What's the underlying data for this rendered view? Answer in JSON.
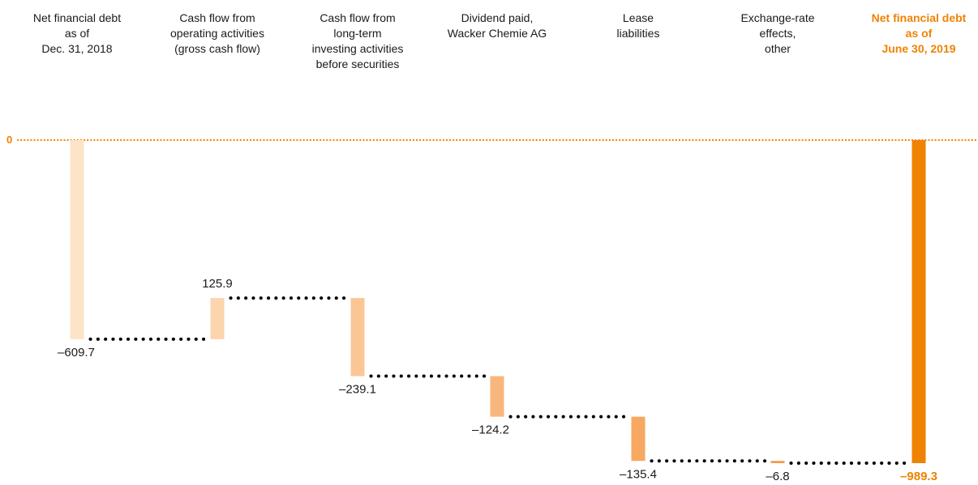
{
  "chart_data": {
    "type": "bar",
    "subtype": "waterfall",
    "categories": [
      [
        "Net financial debt",
        "as of",
        "Dec. 31, 2018"
      ],
      [
        "Cash flow from",
        "operating activities",
        "(gross cash flow)"
      ],
      [
        "Cash flow from",
        "long-term",
        "investing activities",
        "before securities"
      ],
      [
        "Dividend paid,",
        "Wacker Chemie AG"
      ],
      [
        "Lease",
        "liabilities"
      ],
      [
        "Exchange-rate",
        "effects,",
        "other"
      ],
      [
        "Net financial debt",
        "as of",
        "June 30, 2019"
      ]
    ],
    "values": [
      -609.7,
      125.9,
      -239.1,
      -124.2,
      -135.4,
      -6.8,
      -989.3
    ],
    "value_labels": [
      "–609.7",
      "125.9",
      "–239.1",
      "–124.2",
      "–135.4",
      "–6.8",
      "–989.3"
    ],
    "bar_kinds": [
      "total",
      "delta",
      "delta",
      "delta",
      "delta",
      "delta",
      "total"
    ],
    "zero_label": "0",
    "ylim": [
      -989.3,
      0
    ],
    "grid": false,
    "colors": {
      "start_bar": "#fde3c8",
      "step_1": "#fcd4ad",
      "step_2": "#fbc696",
      "step_3": "#f9b67c",
      "step_4": "#f7a861",
      "step_5": "#f49a48",
      "end_bar": "#ef8200",
      "connector": "#000000",
      "zero_line": "#ef8200"
    }
  }
}
